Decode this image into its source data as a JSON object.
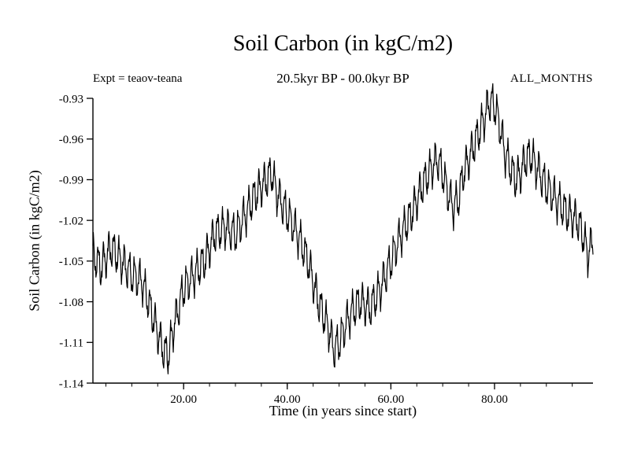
{
  "chart_data": {
    "type": "line",
    "title": "Soil Carbon (in kgC/m2)",
    "subtitle": "20.5kyr BP - 00.0kyr BP",
    "left_annotation": "Expt = teaov-teana",
    "right_annotation": "ALL_MONTHS",
    "xlabel": "Time (in years since start)",
    "ylabel": "Soil Carbon (in kgC/m2)",
    "xlim": [
      2.5,
      99
    ],
    "ylim": [
      -1.14,
      -0.93
    ],
    "x_major_ticks": [
      20,
      40,
      60,
      80
    ],
    "x_tick_labels": [
      "20.00",
      "40.00",
      "60.00",
      "80.00"
    ],
    "x_minor_step": 5,
    "y_ticks": [
      -0.93,
      -0.96,
      -0.99,
      -1.02,
      -1.05,
      -1.08,
      -1.11,
      -1.14
    ],
    "y_tick_labels": [
      "-0.93",
      "-0.96",
      "-0.99",
      "-1.02",
      "-1.05",
      "-1.08",
      "-1.11",
      "-1.14"
    ],
    "line_color": "#000000",
    "trend": [
      [
        2.5,
        -1.045
      ],
      [
        4,
        -1.055
      ],
      [
        6,
        -1.04
      ],
      [
        8,
        -1.05
      ],
      [
        10,
        -1.06
      ],
      [
        12,
        -1.065
      ],
      [
        14,
        -1.09
      ],
      [
        16,
        -1.115
      ],
      [
        17,
        -1.12
      ],
      [
        18,
        -1.1
      ],
      [
        20,
        -1.07
      ],
      [
        22,
        -1.06
      ],
      [
        24,
        -1.05
      ],
      [
        26,
        -1.03
      ],
      [
        28,
        -1.025
      ],
      [
        30,
        -1.03
      ],
      [
        32,
        -1.015
      ],
      [
        34,
        -1.0
      ],
      [
        36,
        -0.99
      ],
      [
        37,
        -0.985
      ],
      [
        38,
        -1.0
      ],
      [
        40,
        -1.015
      ],
      [
        42,
        -1.03
      ],
      [
        44,
        -1.05
      ],
      [
        46,
        -1.08
      ],
      [
        48,
        -1.1
      ],
      [
        49,
        -1.115
      ],
      [
        50,
        -1.11
      ],
      [
        52,
        -1.09
      ],
      [
        54,
        -1.08
      ],
      [
        56,
        -1.085
      ],
      [
        58,
        -1.07
      ],
      [
        60,
        -1.05
      ],
      [
        62,
        -1.03
      ],
      [
        64,
        -1.015
      ],
      [
        66,
        -0.995
      ],
      [
        68,
        -0.98
      ],
      [
        69,
        -0.975
      ],
      [
        70,
        -0.985
      ],
      [
        71,
        -1.0
      ],
      [
        72,
        -1.01
      ],
      [
        73,
        -1.005
      ],
      [
        74,
        -0.985
      ],
      [
        76,
        -0.965
      ],
      [
        78,
        -0.945
      ],
      [
        79,
        -0.932
      ],
      [
        80,
        -0.935
      ],
      [
        81,
        -0.95
      ],
      [
        82,
        -0.97
      ],
      [
        84,
        -0.99
      ],
      [
        85,
        -0.985
      ],
      [
        86,
        -0.975
      ],
      [
        87,
        -0.972
      ],
      [
        88,
        -0.98
      ],
      [
        90,
        -0.995
      ],
      [
        92,
        -1.005
      ],
      [
        94,
        -1.015
      ],
      [
        96,
        -1.02
      ],
      [
        97,
        -1.03
      ],
      [
        98,
        -1.045
      ],
      [
        99,
        -1.035
      ]
    ],
    "oscillation": {
      "period_years": 1.0,
      "amplitude": 0.012,
      "harmonic2_amplitude": 0.004,
      "harmonic3_amplitude": 0.0025,
      "samples_per_year": 12
    }
  }
}
